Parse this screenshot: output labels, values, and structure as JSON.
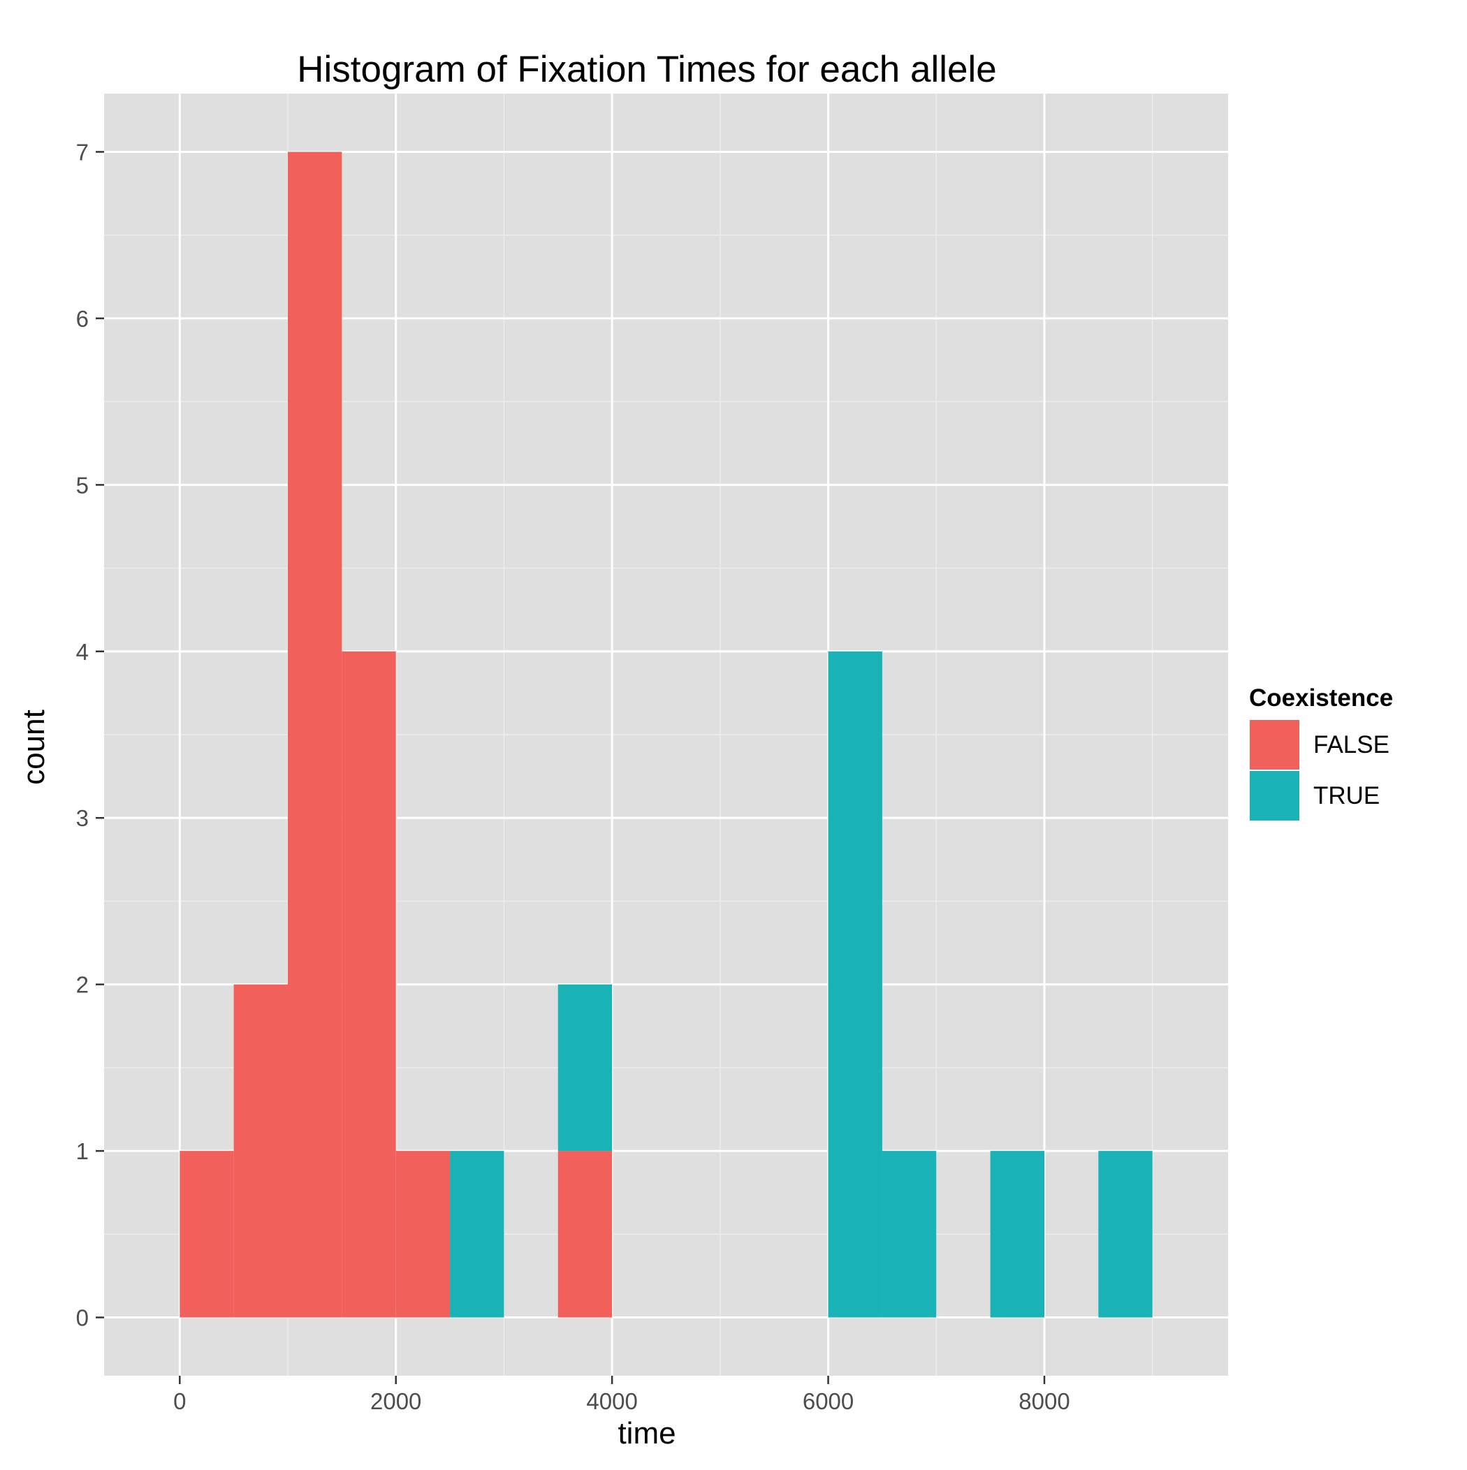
{
  "chart_data": {
    "type": "bar",
    "subtype": "stacked histogram",
    "title": "Histogram of Fixation Times for each allele",
    "xlabel": "time",
    "ylabel": "count",
    "xlim": [
      -700,
      9700
    ],
    "ylim": [
      -0.35,
      7.35
    ],
    "x_ticks": [
      0,
      2000,
      4000,
      6000,
      8000
    ],
    "x_tick_labels": [
      "0",
      "2000",
      "4000",
      "6000",
      "8000"
    ],
    "y_ticks": [
      0,
      1,
      2,
      3,
      4,
      5,
      6,
      7
    ],
    "y_tick_labels": [
      "0",
      "1",
      "2",
      "3",
      "4",
      "5",
      "6",
      "7"
    ],
    "bin_width": 500,
    "grid": true,
    "legend_title": "Coexistence",
    "legend_position": "right",
    "series": [
      {
        "name": "FALSE",
        "color": "#F2605B",
        "bins": [
          {
            "x0": 0,
            "x1": 500,
            "count": 1
          },
          {
            "x0": 500,
            "x1": 1000,
            "count": 2
          },
          {
            "x0": 1000,
            "x1": 1500,
            "count": 7
          },
          {
            "x0": 1500,
            "x1": 2000,
            "count": 4
          },
          {
            "x0": 2000,
            "x1": 2500,
            "count": 1
          },
          {
            "x0": 3500,
            "x1": 4000,
            "count": 1
          }
        ]
      },
      {
        "name": "TRUE",
        "color": "#19B3B7",
        "bins": [
          {
            "x0": 2500,
            "x1": 3000,
            "count": 1
          },
          {
            "x0": 3500,
            "x1": 4000,
            "count": 1
          },
          {
            "x0": 6000,
            "x1": 6500,
            "count": 4
          },
          {
            "x0": 6500,
            "x1": 7000,
            "count": 1
          },
          {
            "x0": 7500,
            "x1": 8000,
            "count": 1
          },
          {
            "x0": 8500,
            "x1": 9000,
            "count": 1
          }
        ]
      }
    ],
    "colors": {
      "panel_background": "#DFDFDF",
      "grid_major": "#FFFFFF",
      "grid_minor": "#EDEDED",
      "tick_label": "#4D4D4D"
    }
  }
}
